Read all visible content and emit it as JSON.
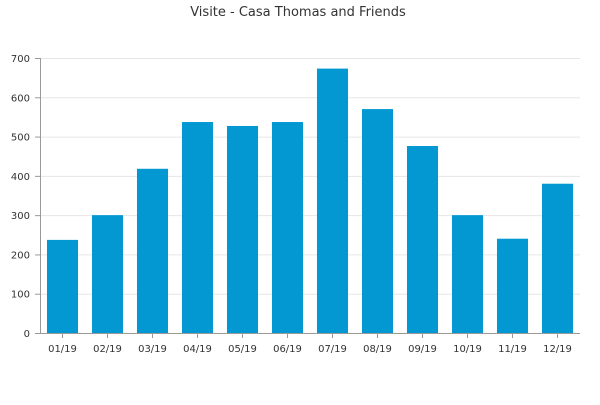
{
  "chart_data": {
    "type": "bar",
    "title": "Visite - Casa Thomas and Friends",
    "xlabel": "",
    "ylabel": "",
    "categories": [
      "01/19",
      "02/19",
      "03/19",
      "04/19",
      "05/19",
      "06/19",
      "07/19",
      "08/19",
      "09/19",
      "10/19",
      "11/19",
      "12/19"
    ],
    "values": [
      237,
      300,
      418,
      537,
      527,
      537,
      673,
      570,
      476,
      300,
      240,
      380
    ],
    "ylim": [
      0,
      700
    ],
    "yticks": [
      0,
      100,
      200,
      300,
      400,
      500,
      600,
      700
    ],
    "grid": true,
    "legend": "none",
    "colors": {
      "bar": "#0398d2",
      "grid": "#e6e6e6",
      "axis": "#999999"
    }
  }
}
